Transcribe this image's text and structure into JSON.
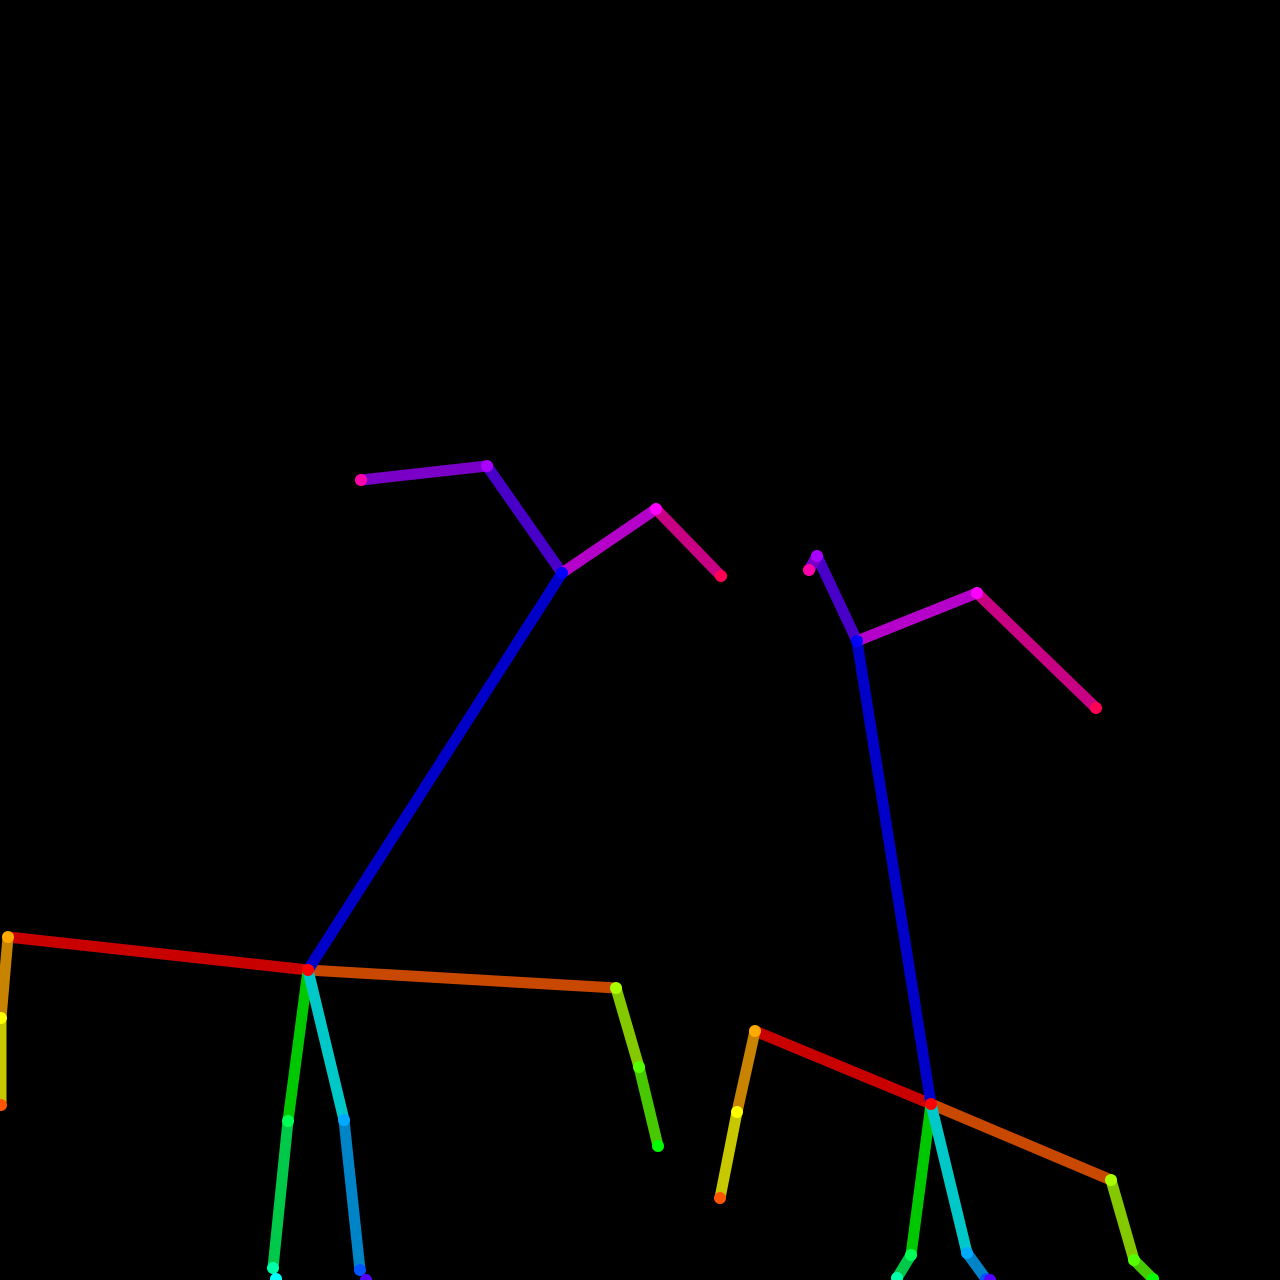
{
  "background_color": "#000000",
  "skeletons": [
    {
      "name": "pose-figure-left",
      "limbs": [
        {
          "name": "neck-to-right-shoulder-limb",
          "color": "#c80000"
        },
        {
          "name": "neck-to-left-shoulder-limb",
          "color": "#c84800"
        },
        {
          "name": "right-upper-arm-limb",
          "color": "#c88400"
        },
        {
          "name": "right-forearm-limb",
          "color": "#c8c800"
        },
        {
          "name": "left-upper-arm-limb",
          "color": "#84c800"
        },
        {
          "name": "left-forearm-limb",
          "color": "#48c800"
        },
        {
          "name": "right-thigh-limb",
          "color": "#00c800"
        },
        {
          "name": "right-shin-limb",
          "color": "#00c848"
        },
        {
          "name": "left-thigh-limb",
          "color": "#00c8c8"
        },
        {
          "name": "left-shin-limb",
          "color": "#0084c8"
        },
        {
          "name": "neck-to-nose-limb",
          "color": "#0000c8"
        },
        {
          "name": "nose-to-right-eye-limb",
          "color": "#4800c8"
        },
        {
          "name": "right-eye-to-ear-limb",
          "color": "#7a00c8"
        },
        {
          "name": "nose-to-left-eye-limb",
          "color": "#b400c8"
        },
        {
          "name": "left-eye-to-ear-limb",
          "color": "#c80084"
        }
      ],
      "joints": [
        {
          "name": "neck-joint",
          "color": "#ff0000"
        },
        {
          "name": "right-shoulder-joint",
          "color": "#ffaa00"
        },
        {
          "name": "right-elbow-joint",
          "color": "#ffff00"
        },
        {
          "name": "right-wrist-joint",
          "color": "#ff5500"
        },
        {
          "name": "left-shoulder-joint",
          "color": "#aaff00"
        },
        {
          "name": "left-elbow-joint",
          "color": "#55ff00"
        },
        {
          "name": "left-wrist-joint",
          "color": "#00ff00"
        },
        {
          "name": "right-hip-joint",
          "color": "#00ff55"
        },
        {
          "name": "right-knee-joint",
          "color": "#00ffaa"
        },
        {
          "name": "left-hip-joint",
          "color": "#00aaff"
        },
        {
          "name": "left-knee-joint",
          "color": "#0055ff"
        },
        {
          "name": "nose-joint",
          "color": "#0000ff"
        },
        {
          "name": "right-eye-joint",
          "color": "#aa00ff"
        },
        {
          "name": "right-ear-joint",
          "color": "#ff00aa"
        },
        {
          "name": "left-eye-joint",
          "color": "#ff00ff"
        },
        {
          "name": "left-ear-joint",
          "color": "#ff0055"
        },
        {
          "name": "left-ankle-joint",
          "color": "#5500ff"
        },
        {
          "name": "right-ankle-joint",
          "color": "#00ffff"
        }
      ]
    },
    {
      "name": "pose-figure-right",
      "limbs": [
        {
          "name": "neck-to-right-shoulder-limb",
          "color": "#c80000"
        },
        {
          "name": "neck-to-left-shoulder-limb",
          "color": "#c84800"
        },
        {
          "name": "right-upper-arm-limb",
          "color": "#c88400"
        },
        {
          "name": "right-forearm-limb",
          "color": "#c8c800"
        },
        {
          "name": "left-upper-arm-limb",
          "color": "#84c800"
        },
        {
          "name": "left-forearm-limb",
          "color": "#48c800"
        },
        {
          "name": "right-thigh-limb",
          "color": "#00c800"
        },
        {
          "name": "right-shin-limb",
          "color": "#00c848"
        },
        {
          "name": "left-thigh-limb",
          "color": "#00c8c8"
        },
        {
          "name": "left-shin-limb",
          "color": "#0084c8"
        },
        {
          "name": "neck-to-nose-limb",
          "color": "#0000c8"
        },
        {
          "name": "nose-to-right-eye-limb",
          "color": "#4800c8"
        },
        {
          "name": "right-eye-to-ear-limb",
          "color": "#7a00c8"
        },
        {
          "name": "nose-to-left-eye-limb",
          "color": "#b400c8"
        },
        {
          "name": "left-eye-to-ear-limb",
          "color": "#c80084"
        }
      ],
      "joints": [
        {
          "name": "neck-joint",
          "color": "#ff0000"
        },
        {
          "name": "right-shoulder-joint",
          "color": "#ffaa00"
        },
        {
          "name": "right-elbow-joint",
          "color": "#ffff00"
        },
        {
          "name": "right-wrist-joint",
          "color": "#ff5500"
        },
        {
          "name": "left-shoulder-joint",
          "color": "#aaff00"
        },
        {
          "name": "left-elbow-joint",
          "color": "#55ff00"
        },
        {
          "name": "left-wrist-joint",
          "color": "#00ff00"
        },
        {
          "name": "right-hip-joint",
          "color": "#00ff55"
        },
        {
          "name": "right-knee-joint",
          "color": "#00ffaa"
        },
        {
          "name": "left-hip-joint",
          "color": "#00aaff"
        },
        {
          "name": "left-knee-joint",
          "color": "#0055ff"
        },
        {
          "name": "nose-joint",
          "color": "#0000ff"
        },
        {
          "name": "right-eye-joint",
          "color": "#aa00ff"
        },
        {
          "name": "right-ear-joint",
          "color": "#ff00aa"
        },
        {
          "name": "left-eye-joint",
          "color": "#ff00ff"
        },
        {
          "name": "left-ear-joint",
          "color": "#ff0055"
        },
        {
          "name": "left-ankle-joint",
          "color": "#5500ff"
        }
      ]
    }
  ]
}
